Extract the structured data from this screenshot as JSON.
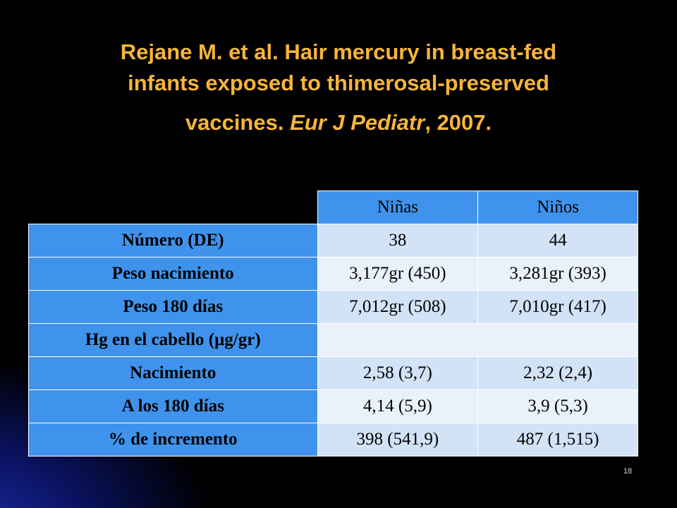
{
  "slide": {
    "title_line1": "Rejane M. et al. Hair mercury in breast-fed",
    "title_line2": "infants exposed to thimerosal-preserved",
    "title_line3_pre": "vaccines. ",
    "title_line3_italic": "Eur J Pediatr",
    "title_line3_post": ", 2007.",
    "page_number": "18"
  },
  "table": {
    "headers": [
      "Niñas",
      "Niños"
    ],
    "rows": [
      {
        "label": "Número (DE)",
        "values": [
          "38",
          "44"
        ]
      },
      {
        "label": "Peso nacimiento",
        "values": [
          "3,177gr (450)",
          "3,281gr (393)"
        ]
      },
      {
        "label": "Peso 180 días",
        "values": [
          "7,012gr (508)",
          "7,010gr (417)"
        ]
      },
      {
        "label": "Hg en el cabello (μg/gr)",
        "values": [
          "",
          ""
        ]
      },
      {
        "label": "Nacimiento",
        "values": [
          "2,58 (3,7)",
          "2,32 (2,4)"
        ]
      },
      {
        "label": "A los 180 días",
        "values": [
          "4,14 (5,9)",
          "3,9 (5,3)"
        ]
      },
      {
        "label": "% de incremento",
        "values": [
          "398 (541,9)",
          "487 (1,515)"
        ]
      }
    ]
  },
  "colors": {
    "title": "#f6b53a",
    "header_fill": "#3f93ec",
    "cell_fill": "#d2e3f7",
    "background": "#000000"
  }
}
